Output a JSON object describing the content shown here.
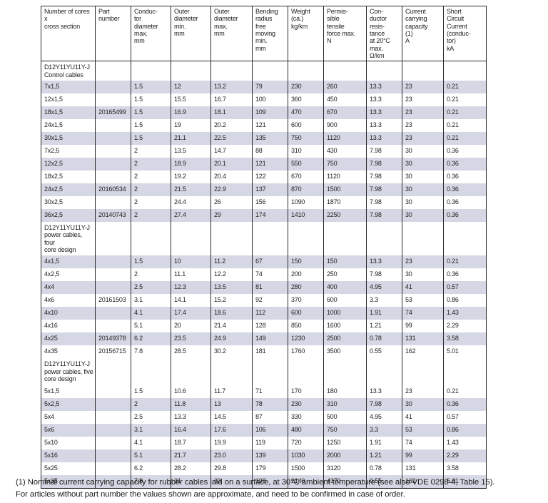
{
  "page": {
    "background": "#ffffff",
    "stripe_color": "#d5d8e4",
    "border_color": "#2a2a2a"
  },
  "table": {
    "headers": [
      "Number of cores x\ncross section",
      "Part\nnumber",
      "Conduc-\ntor\ndiameter\nmax.\nmm",
      "Outer\ndiameter\nmin.\nmm",
      "Outer\ndiameter\nmax.\nmm",
      "Bending\nradius\nfree\nmoving\nmin.\nmm",
      "Weight\n(ca.)\nkg/km",
      "Permis-\nsible\ntensile\nforce max.\nN",
      "Con-\nductor\nresis-\ntance\nat 20°C\nmax.\nΩ/km",
      "Current\ncarrying\ncapacity\n(1)\nA",
      "Short\nCircuit\nCurrent\n(conduc-\ntor)\nkA"
    ],
    "sections": [
      {
        "title": "D12Y11YU11Y-J\nControl cables",
        "stripe_first": true,
        "rows": [
          [
            "7x1,5",
            "",
            "1.5",
            "12",
            "13.2",
            "79",
            "230",
            "260",
            "13.3",
            "23",
            "0.21"
          ],
          [
            "12x1,5",
            "",
            "1.5",
            "15.5",
            "16.7",
            "100",
            "360",
            "450",
            "13.3",
            "23",
            "0.21"
          ],
          [
            "18x1,5",
            "20165499",
            "1.5",
            "16.9",
            "18.1",
            "109",
            "470",
            "670",
            "13.3",
            "23",
            "0.21"
          ],
          [
            "24x1,5",
            "",
            "1.5",
            "19",
            "20.2",
            "121",
            "600",
            "900",
            "13.3",
            "23",
            "0.21"
          ],
          [
            "30x1,5",
            "",
            "1.5",
            "21.1",
            "22.5",
            "135",
            "750",
            "1120",
            "13.3",
            "23",
            "0.21"
          ],
          [
            "7x2,5",
            "",
            "2",
            "13.5",
            "14.7",
            "88",
            "310",
            "430",
            "7.98",
            "30",
            "0.36"
          ],
          [
            "12x2,5",
            "",
            "2",
            "18.9",
            "20.1",
            "121",
            "550",
            "750",
            "7.98",
            "30",
            "0.36"
          ],
          [
            "18x2,5",
            "",
            "2",
            "19.2",
            "20.4",
            "122",
            "670",
            "1120",
            "7.98",
            "30",
            "0.36"
          ],
          [
            "24x2,5",
            "20160534",
            "2",
            "21.5",
            "22.9",
            "137",
            "870",
            "1500",
            "7.98",
            "30",
            "0.36"
          ],
          [
            "30x2,5",
            "",
            "2",
            "24.4",
            "26",
            "156",
            "1090",
            "1870",
            "7.98",
            "30",
            "0.36"
          ],
          [
            "36x2,5",
            "20140743",
            "2",
            "27.4",
            "29",
            "174",
            "1410",
            "2250",
            "7.98",
            "30",
            "0.36"
          ]
        ]
      },
      {
        "title": "D12Y11YU11Y-J\npower cables, four\ncore design",
        "stripe_first": true,
        "rows": [
          [
            "4x1,5",
            "",
            "1.5",
            "10",
            "11.2",
            "67",
            "150",
            "150",
            "13.3",
            "23",
            "0.21"
          ],
          [
            "4x2,5",
            "",
            "2",
            "11.1",
            "12.2",
            "74",
            "200",
            "250",
            "7.98",
            "30",
            "0.36"
          ],
          [
            "4x4",
            "",
            "2.5",
            "12.3",
            "13.5",
            "81",
            "280",
            "400",
            "4.95",
            "41",
            "0.57"
          ],
          [
            "4x6",
            "20161503",
            "3.1",
            "14.1",
            "15.2",
            "92",
            "370",
            "600",
            "3.3",
            "53",
            "0.86"
          ],
          [
            "4x10",
            "",
            "4.1",
            "17.4",
            "18.6",
            "112",
            "600",
            "1000",
            "1.91",
            "74",
            "1.43"
          ],
          [
            "4x16",
            "",
            "5.1",
            "20",
            "21.4",
            "128",
            "850",
            "1600",
            "1.21",
            "99",
            "2.29"
          ],
          [
            "4x25",
            "20149378",
            "6.2",
            "23.5",
            "24.9",
            "149",
            "1230",
            "2500",
            "0.78",
            "131",
            "3.58"
          ],
          [
            "4x35",
            "20156715",
            "7.8",
            "28.5",
            "30.2",
            "181",
            "1760",
            "3500",
            "0.55",
            "162",
            "5.01"
          ]
        ]
      },
      {
        "title": "D12Y11YU11Y-J\npower cables, five\ncore design",
        "stripe_first": false,
        "rows": [
          [
            "5x1,5",
            "",
            "1.5",
            "10.6",
            "11.7",
            "71",
            "170",
            "180",
            "13.3",
            "23",
            "0.21"
          ],
          [
            "5x2,5",
            "",
            "2",
            "11.8",
            "13",
            "78",
            "230",
            "310",
            "7.98",
            "30",
            "0.36"
          ],
          [
            "5x4",
            "",
            "2.5",
            "13.3",
            "14.5",
            "87",
            "330",
            "500",
            "4.95",
            "41",
            "0.57"
          ],
          [
            "5x6",
            "",
            "3.1",
            "16.4",
            "17.6",
            "106",
            "480",
            "750",
            "3.3",
            "53",
            "0.86"
          ],
          [
            "5x10",
            "",
            "4.1",
            "18.7",
            "19.9",
            "119",
            "720",
            "1250",
            "1.91",
            "74",
            "1.43"
          ],
          [
            "5x16",
            "",
            "5.1",
            "21.7",
            "23.0",
            "139",
            "1030",
            "2000",
            "1.21",
            "99",
            "2.29"
          ],
          [
            "5x25",
            "",
            "6.2",
            "28.2",
            "29.8",
            "179",
            "1500",
            "3120",
            "0.78",
            "131",
            "3.58"
          ],
          [
            "5x35",
            "",
            "7.8",
            "31",
            "33",
            "198",
            "2140",
            "4370",
            "0.55",
            "162",
            "5.01"
          ]
        ]
      }
    ]
  },
  "footnote": {
    "line1": "(1) Nominal current carrying capacity for rubber cables laid on a surface, at 30°C ambient temperature (see also VDE 0298-4, Table 15).",
    "line2": "For articles without part number the values shown are approximate, and need to be confirmed in case of order."
  }
}
